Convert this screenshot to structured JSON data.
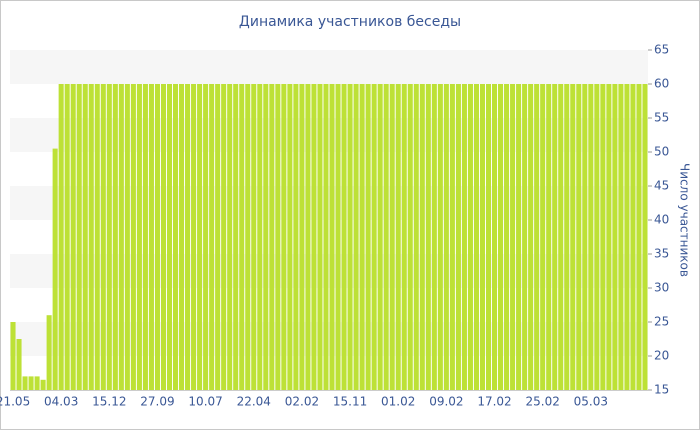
{
  "chart_data": {
    "type": "bar",
    "title": "Динамика участников беседы",
    "y_axis_label": "Число участников",
    "categories": [
      "21.05",
      null,
      null,
      null,
      null,
      null,
      null,
      null,
      "04.03",
      null,
      null,
      null,
      null,
      null,
      null,
      null,
      "15.12",
      null,
      null,
      null,
      null,
      null,
      null,
      null,
      "27.09",
      null,
      null,
      null,
      null,
      null,
      null,
      null,
      "10.07",
      null,
      null,
      null,
      null,
      null,
      null,
      null,
      "22.04",
      null,
      null,
      null,
      null,
      null,
      null,
      null,
      "02.02",
      null,
      null,
      null,
      null,
      null,
      null,
      null,
      "15.11",
      null,
      null,
      null,
      null,
      null,
      null,
      null,
      "01.02",
      null,
      null,
      null,
      null,
      null,
      null,
      null,
      "09.02",
      null,
      null,
      null,
      null,
      null,
      null,
      null,
      "17.02",
      null,
      null,
      null,
      null,
      null,
      null,
      null,
      "25.02",
      null,
      null,
      null,
      null,
      null,
      null,
      null,
      "05.03",
      null,
      null,
      null,
      null,
      null,
      null,
      null,
      null,
      null
    ],
    "values": [
      25,
      22.5,
      17,
      17,
      17,
      16.5,
      26,
      50.5,
      60,
      60,
      60,
      60,
      60,
      60,
      60,
      60,
      60,
      60,
      60,
      60,
      60,
      60,
      60,
      60,
      60,
      60,
      60,
      60,
      60,
      60,
      60,
      60,
      60,
      60,
      60,
      60,
      60,
      60,
      60,
      60,
      60,
      60,
      60,
      60,
      60,
      60,
      60,
      60,
      60,
      60,
      60,
      60,
      60,
      60,
      60,
      60,
      60,
      60,
      60,
      60,
      60,
      60,
      60,
      60,
      60,
      60,
      60,
      60,
      60,
      60,
      60,
      60,
      60,
      60,
      60,
      60,
      60,
      60,
      60,
      60,
      60,
      60,
      60,
      60,
      60,
      60,
      60,
      60,
      60,
      60,
      60,
      60,
      60,
      60,
      60,
      60,
      60,
      60,
      60,
      60,
      60,
      60,
      60,
      60,
      60,
      60
    ],
    "color": "#bde136",
    "ylim": [
      15,
      65
    ],
    "yticks": [
      15,
      20,
      25,
      30,
      35,
      40,
      45,
      50,
      55,
      60,
      65
    ],
    "grid": "bands",
    "y_axis_side": "right"
  }
}
